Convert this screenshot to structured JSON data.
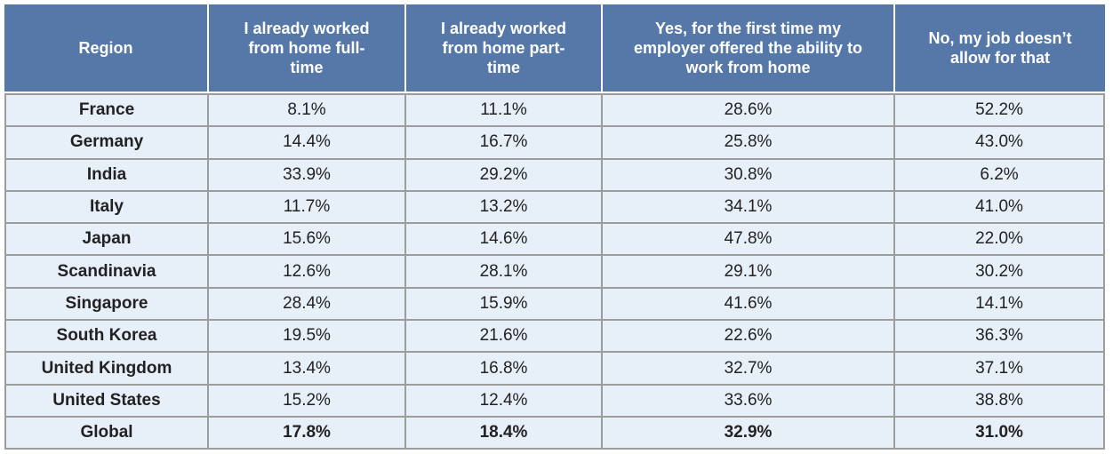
{
  "table": {
    "header": [
      "Region",
      "I already worked from home full-time",
      "I already worked from home part-time",
      "Yes, for the first time my employer offered the ability to work from home",
      "No, my job doesn’t allow for that"
    ],
    "rows": [
      [
        "France",
        "8.1%",
        "11.1%",
        "28.6%",
        "52.2%"
      ],
      [
        "Germany",
        "14.4%",
        "16.7%",
        "25.8%",
        "43.0%"
      ],
      [
        "India",
        "33.9%",
        "29.2%",
        "30.8%",
        "6.2%"
      ],
      [
        "Italy",
        "11.7%",
        "13.2%",
        "34.1%",
        "41.0%"
      ],
      [
        "Japan",
        "15.6%",
        "14.6%",
        "47.8%",
        "22.0%"
      ],
      [
        "Scandinavia",
        "12.6%",
        "28.1%",
        "29.1%",
        "30.2%"
      ],
      [
        "Singapore",
        "28.4%",
        "15.9%",
        "41.6%",
        "14.1%"
      ],
      [
        "South Korea",
        "19.5%",
        "21.6%",
        "22.6%",
        "36.3%"
      ],
      [
        "United Kingdom",
        "13.4%",
        "16.8%",
        "32.7%",
        "37.1%"
      ],
      [
        "United States",
        "15.2%",
        "12.4%",
        "33.6%",
        "38.8%"
      ],
      [
        "Global",
        "17.8%",
        "18.4%",
        "32.9%",
        "31.0%"
      ]
    ]
  }
}
